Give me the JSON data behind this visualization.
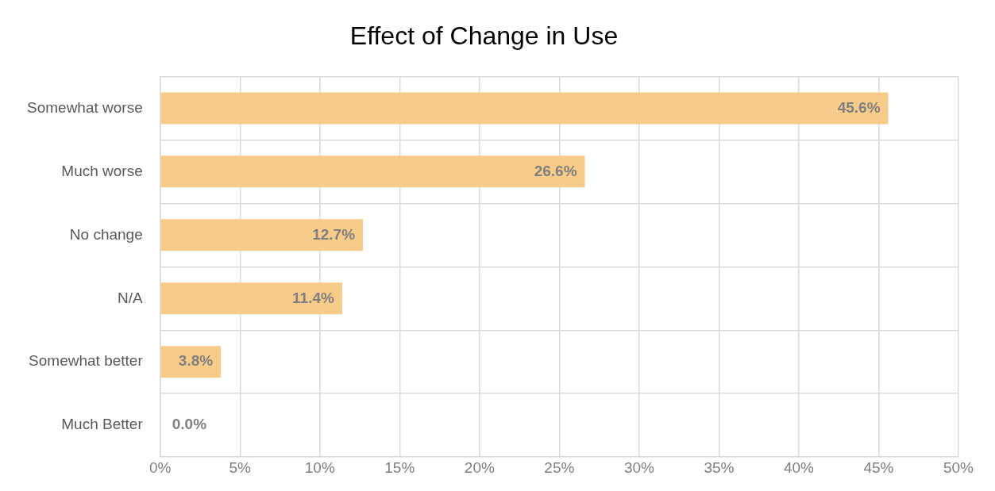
{
  "chart_data": {
    "type": "bar",
    "orientation": "horizontal",
    "title": "Effect of Change in Use",
    "categories": [
      "Somewhat worse",
      "Much worse",
      "No change",
      "N/A",
      "Somewhat better",
      "Much Better"
    ],
    "values": [
      45.6,
      26.6,
      12.7,
      11.4,
      3.8,
      0.0
    ],
    "value_labels": [
      "45.6%",
      "26.6%",
      "12.7%",
      "11.4%",
      "3.8%",
      "0.0%"
    ],
    "color": "#f7cb8a",
    "xlim": [
      0,
      50
    ],
    "xticks": [
      {
        "value": 0,
        "label": "0%"
      },
      {
        "value": 5,
        "label": "5%"
      },
      {
        "value": 10,
        "label": "10%"
      },
      {
        "value": 15,
        "label": "15%"
      },
      {
        "value": 20,
        "label": "20%"
      },
      {
        "value": 25,
        "label": "25%"
      },
      {
        "value": 30,
        "label": "30%"
      },
      {
        "value": 35,
        "label": "35%"
      },
      {
        "value": 40,
        "label": "40%"
      },
      {
        "value": 45,
        "label": "45%"
      },
      {
        "value": 50,
        "label": "50%"
      }
    ],
    "grid": true
  }
}
